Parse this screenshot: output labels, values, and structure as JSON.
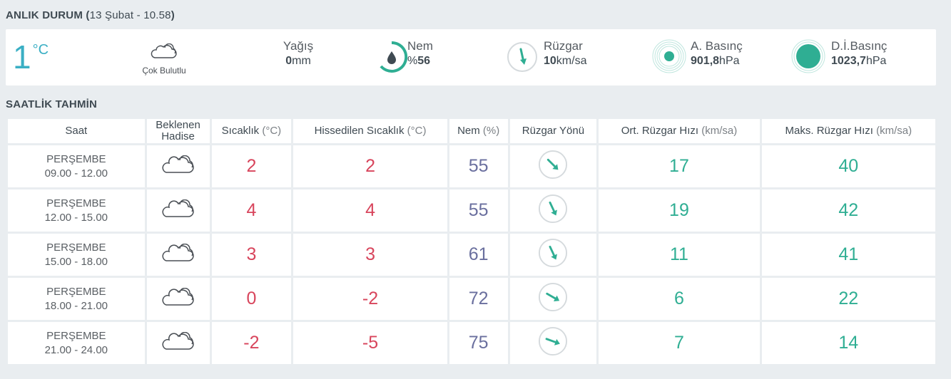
{
  "current": {
    "title": "ANLIK DURUM",
    "date": "(13 Şubat - 10.58)",
    "date_open": "(",
    "date_text": "13 Şubat - 10.58",
    "date_close": ")",
    "temp": "1",
    "temp_unit": "°C",
    "condition": "Çok Bulutlu",
    "condition_icon": "cloud-icon",
    "rain_label": "Yağış",
    "rain_value": "0",
    "rain_unit": "mm",
    "humidity_label": "Nem",
    "humidity_prefix": "%",
    "humidity_value": "56",
    "humidity_icon": "water-drop-icon",
    "wind_label": "Rüzgar",
    "wind_value": "10",
    "wind_unit": "km/sa",
    "wind_icon": "wind-direction-icon",
    "pressure_label": "A. Basınç",
    "pressure_value": "901,8",
    "pressure_unit": "hPa",
    "pressure_icon": "pressure-icon",
    "sea_pressure_label": "D.İ.Basınç",
    "sea_pressure_value": "1023,7",
    "sea_pressure_unit": "hPa",
    "sea_pressure_icon": "sea-pressure-icon"
  },
  "hourly": {
    "title": "SAATLİK TAHMİN",
    "headers": {
      "time": "Saat",
      "event": "Beklenen Hadise",
      "temp": "Sıcaklık",
      "temp_unit": "(°C)",
      "feels": "Hissedilen Sıcaklık",
      "feels_unit": "(°C)",
      "humidity": "Nem",
      "humidity_unit": "(%)",
      "wind_dir": "Rüzgar Yönü",
      "avg_wind": "Ort. Rüzgar Hızı",
      "avg_wind_unit": "(km/sa)",
      "max_wind": "Maks. Rüzgar Hızı",
      "max_wind_unit": "(km/sa)"
    },
    "rows": [
      {
        "day": "PERŞEMBE",
        "time": "09.00 - 12.00",
        "icon": "cloud-icon",
        "temp": "2",
        "feels": "2",
        "humidity": "55",
        "wind_dir_deg": 135,
        "avg": "17",
        "max": "40"
      },
      {
        "day": "PERŞEMBE",
        "time": "12.00 - 15.00",
        "icon": "cloud-icon",
        "temp": "4",
        "feels": "4",
        "humidity": "55",
        "wind_dir_deg": 155,
        "avg": "19",
        "max": "42"
      },
      {
        "day": "PERŞEMBE",
        "time": "15.00 - 18.00",
        "icon": "cloud-icon",
        "temp": "3",
        "feels": "3",
        "humidity": "61",
        "wind_dir_deg": 155,
        "avg": "11",
        "max": "41"
      },
      {
        "day": "PERŞEMBE",
        "time": "18.00 - 21.00",
        "icon": "cloud-icon",
        "temp": "0",
        "feels": "-2",
        "humidity": "72",
        "wind_dir_deg": 120,
        "avg": "6",
        "max": "22"
      },
      {
        "day": "PERŞEMBE",
        "time": "21.00 - 24.00",
        "icon": "cloud-icon",
        "temp": "-2",
        "feels": "-5",
        "humidity": "75",
        "wind_dir_deg": 110,
        "avg": "7",
        "max": "14"
      }
    ]
  },
  "colors": {
    "accent_blue": "#3aafc4",
    "teal": "#2fae93",
    "temp_red": "#d8455c",
    "humidity_purple": "#6a6f9e"
  }
}
